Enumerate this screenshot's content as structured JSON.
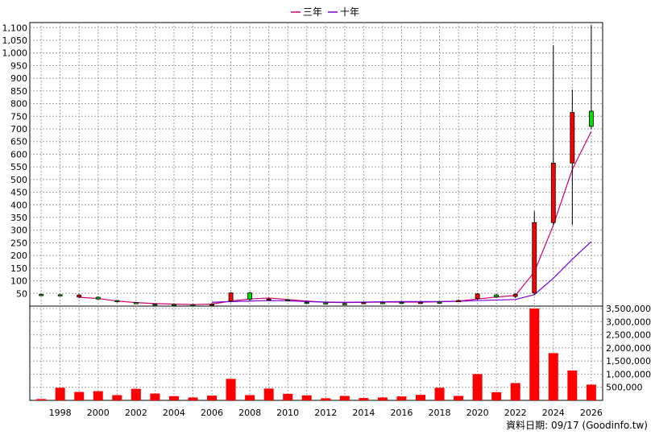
{
  "chart_data": {
    "type": "candlestick+line+bar",
    "legend": [
      {
        "name": "三年",
        "color": "#d0006f"
      },
      {
        "name": "十年",
        "color": "#7a00d6"
      }
    ],
    "price_axis": {
      "ylim": [
        0,
        1120
      ],
      "ticks": [
        50,
        100,
        150,
        200,
        250,
        300,
        350,
        400,
        450,
        500,
        550,
        600,
        650,
        700,
        750,
        800,
        850,
        900,
        950,
        1000,
        1050,
        1100
      ],
      "tick_labels": [
        "50",
        "100",
        "150",
        "200",
        "250",
        "300",
        "350",
        "400",
        "450",
        "500",
        "550",
        "600",
        "650",
        "700",
        "750",
        "800",
        "850",
        "900",
        "950",
        "1,000",
        "1,050",
        "1,100"
      ],
      "position": "left"
    },
    "volume_axis": {
      "ylim": [
        0,
        3500000
      ],
      "ticks": [
        500000,
        1000000,
        1500000,
        2000000,
        2500000,
        3000000,
        3500000
      ],
      "tick_labels": [
        "500,000",
        "1,000,000",
        "1,500,000",
        "2,000,000",
        "2,500,000",
        "3,000,000",
        "3,500,000"
      ],
      "position": "right"
    },
    "x_axis": {
      "range": [
        1996.4,
        2026.6
      ],
      "tick_years": [
        1998,
        2000,
        2002,
        2004,
        2006,
        2008,
        2010,
        2012,
        2014,
        2016,
        2018,
        2020,
        2022,
        2024,
        2026
      ],
      "tick_labels": [
        "1998",
        "2000",
        "2002",
        "2004",
        "2006",
        "2008",
        "2010",
        "2012",
        "2014",
        "2016",
        "2018",
        "2020",
        "2022",
        "2024",
        "2026"
      ]
    },
    "candles": [
      {
        "x": 1997,
        "open": 46,
        "close": 44,
        "high": 50,
        "low": 41
      },
      {
        "x": 1998,
        "open": 45,
        "close": 43,
        "high": 48,
        "low": 40
      },
      {
        "x": 1999,
        "open": 36,
        "close": 44,
        "high": 47,
        "low": 32
      },
      {
        "x": 2000,
        "open": 35,
        "close": 28,
        "high": 38,
        "low": 25
      },
      {
        "x": 2001,
        "open": 22,
        "close": 18,
        "high": 24,
        "low": 14
      },
      {
        "x": 2002,
        "open": 14,
        "close": 12,
        "high": 16,
        "low": 10
      },
      {
        "x": 2003,
        "open": 8,
        "close": 7,
        "high": 9,
        "low": 5
      },
      {
        "x": 2004,
        "open": 7,
        "close": 6,
        "high": 8,
        "low": 4
      },
      {
        "x": 2005,
        "open": 5,
        "close": 3,
        "high": 6,
        "low": 1
      },
      {
        "x": 2006,
        "open": 7,
        "close": 8,
        "high": 12,
        "low": 5
      },
      {
        "x": 2007,
        "open": 20,
        "close": 52,
        "high": 55,
        "low": 15
      },
      {
        "x": 2008,
        "open": 52,
        "close": 27,
        "high": 56,
        "low": 20
      },
      {
        "x": 2009,
        "open": 24,
        "close": 28,
        "high": 31,
        "low": 20
      },
      {
        "x": 2010,
        "open": 25,
        "close": 23,
        "high": 28,
        "low": 18
      },
      {
        "x": 2011,
        "open": 15,
        "close": 13,
        "high": 18,
        "low": 10
      },
      {
        "x": 2012,
        "open": 13,
        "close": 12,
        "high": 15,
        "low": 9
      },
      {
        "x": 2013,
        "open": 10,
        "close": 9,
        "high": 13,
        "low": 7
      },
      {
        "x": 2014,
        "open": 13,
        "close": 14,
        "high": 16,
        "low": 10
      },
      {
        "x": 2015,
        "open": 14,
        "close": 13,
        "high": 15,
        "low": 11
      },
      {
        "x": 2016,
        "open": 15,
        "close": 14,
        "high": 16,
        "low": 12
      },
      {
        "x": 2017,
        "open": 14,
        "close": 15,
        "high": 17,
        "low": 12
      },
      {
        "x": 2018,
        "open": 16,
        "close": 15,
        "high": 19,
        "low": 12
      },
      {
        "x": 2019,
        "open": 20,
        "close": 22,
        "high": 26,
        "low": 17
      },
      {
        "x": 2020,
        "open": 30,
        "close": 48,
        "high": 52,
        "low": 25
      },
      {
        "x": 2021,
        "open": 44,
        "close": 36,
        "high": 48,
        "low": 32
      },
      {
        "x": 2022,
        "open": 38,
        "close": 46,
        "high": 52,
        "low": 32
      },
      {
        "x": 2023,
        "open": 52,
        "close": 330,
        "high": 375,
        "low": 45
      },
      {
        "x": 2024,
        "open": 330,
        "close": 565,
        "high": 1030,
        "low": 320
      },
      {
        "x": 2025,
        "open": 565,
        "close": 765,
        "high": 855,
        "low": 320
      },
      {
        "x": 2026,
        "open": 770,
        "close": 710,
        "high": 1110,
        "low": 700
      }
    ],
    "series": [
      {
        "name": "三年",
        "x": [
          1999,
          2000,
          2001,
          2002,
          2003,
          2004,
          2005,
          2006,
          2007,
          2008,
          2009,
          2010,
          2011,
          2012,
          2013,
          2014,
          2015,
          2016,
          2017,
          2018,
          2019,
          2020,
          2021,
          2022,
          2023,
          2024,
          2025,
          2026
        ],
        "values": [
          35,
          30,
          20,
          14,
          10,
          8,
          6,
          8,
          20,
          28,
          32,
          26,
          20,
          15,
          14,
          15,
          16,
          16,
          16,
          17,
          20,
          28,
          36,
          42,
          135,
          320,
          540,
          690
        ]
      },
      {
        "name": "十年",
        "x": [
          2006,
          2007,
          2008,
          2009,
          2010,
          2011,
          2012,
          2013,
          2014,
          2015,
          2016,
          2017,
          2018,
          2019,
          2020,
          2021,
          2022,
          2023,
          2024,
          2025,
          2026
        ],
        "values": [
          15,
          18,
          20,
          22,
          21,
          18,
          16,
          15,
          16,
          17,
          18,
          18,
          18,
          19,
          22,
          24,
          26,
          45,
          110,
          185,
          255
        ]
      }
    ],
    "volume": {
      "x": [
        1997,
        1998,
        1999,
        2000,
        2001,
        2002,
        2003,
        2004,
        2005,
        2006,
        2007,
        2008,
        2009,
        2010,
        2011,
        2012,
        2013,
        2014,
        2015,
        2016,
        2017,
        2018,
        2019,
        2020,
        2021,
        2022,
        2023,
        2024,
        2025,
        2026
      ],
      "values": [
        50000,
        480000,
        320000,
        350000,
        200000,
        440000,
        260000,
        160000,
        110000,
        180000,
        820000,
        200000,
        450000,
        250000,
        190000,
        80000,
        170000,
        90000,
        110000,
        150000,
        210000,
        480000,
        170000,
        1000000,
        310000,
        660000,
        3500000,
        1800000,
        1140000,
        600000
      ],
      "color": "#ff0000"
    },
    "footer_text": "資料日期: 09/17  (Goodinfo.tw)"
  }
}
